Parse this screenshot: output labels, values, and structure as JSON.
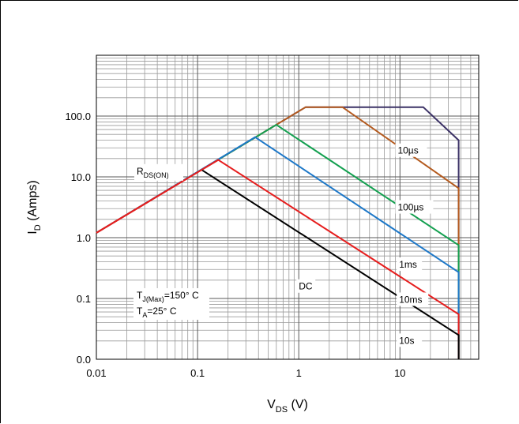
{
  "chart_data": {
    "type": "line",
    "title": "",
    "xlabel": {
      "main": "V",
      "sub": "DS",
      "tail": " (V)"
    },
    "ylabel": {
      "main": "I",
      "sub": "D",
      "tail": " (Amps)"
    },
    "x_scale": "log",
    "y_scale": "log",
    "xlim": [
      0.01,
      60
    ],
    "ylim": [
      0.01,
      1000
    ],
    "grid": true,
    "x_ticks": [
      {
        "value": 0.01,
        "label": "0.01"
      },
      {
        "value": 0.1,
        "label": "0.1"
      },
      {
        "value": 1,
        "label": "1"
      },
      {
        "value": 10,
        "label": "10"
      }
    ],
    "y_ticks": [
      {
        "value": 0.01,
        "label": "0.0"
      },
      {
        "value": 0.1,
        "label": "0.1"
      },
      {
        "value": 1,
        "label": "1.0"
      },
      {
        "value": 10,
        "label": "10.0"
      },
      {
        "value": 100,
        "label": "100.0"
      }
    ],
    "series": [
      {
        "name": "10µs",
        "color": "#3c3266",
        "x": [
          0.01,
          1.17,
          17,
          38,
          38
        ],
        "y": [
          1.2,
          140,
          140,
          40,
          0.01
        ]
      },
      {
        "name": "100µs",
        "color": "#b45a1e",
        "x": [
          0.01,
          1.17,
          2.7,
          38,
          38
        ],
        "y": [
          1.2,
          140,
          140,
          6.5,
          0.01
        ]
      },
      {
        "name": "1ms",
        "color": "#14a050",
        "x": [
          0.01,
          0.6,
          38,
          38
        ],
        "y": [
          1.2,
          72,
          0.75,
          0.01
        ]
      },
      {
        "name": "",
        "color": "#1e78c8",
        "x": [
          0.01,
          0.37,
          38,
          38
        ],
        "y": [
          1.2,
          45,
          0.27,
          0.01
        ]
      },
      {
        "name": "10ms",
        "color": "#e61e1e",
        "x": [
          0.01,
          0.16,
          38,
          38
        ],
        "y": [
          1.2,
          19,
          0.055,
          0.01
        ]
      },
      {
        "name": "DC",
        "color": "#000000",
        "x": [
          0.11,
          38,
          38
        ],
        "y": [
          13,
          0.025,
          0.01
        ]
      }
    ],
    "rds_line": {
      "color": "#e61e1e",
      "x": [
        0.01,
        0.16
      ],
      "y": [
        1.2,
        19
      ]
    },
    "labels": [
      {
        "text": "10µs",
        "x": 9.5,
        "y": 24
      },
      {
        "text": "100µs",
        "x": 9.5,
        "y": 2.8
      },
      {
        "text": "1ms",
        "x": 9.8,
        "y": 0.32
      },
      {
        "text": "10ms",
        "x": 9.8,
        "y": 0.085
      },
      {
        "text": "10s",
        "x": 9.8,
        "y": 0.018
      },
      {
        "text": "DC",
        "x": 1.0,
        "y": 0.14
      }
    ],
    "rds_label": {
      "main": "R",
      "sub": "DS(ON)",
      "x": 0.025,
      "y": 11
    },
    "conditions": [
      {
        "main": "T",
        "sub": "J(Max)",
        "tail": "=150° C",
        "x": 0.025,
        "y": 0.1
      },
      {
        "main": "T",
        "sub": "A",
        "tail": "=25° C",
        "x": 0.025,
        "y": 0.055
      }
    ]
  }
}
